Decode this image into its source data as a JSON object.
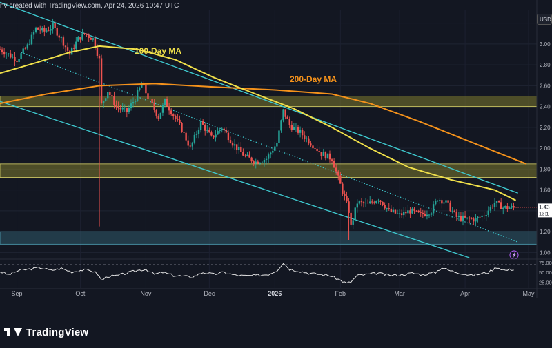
{
  "header": {
    "text": "nv created with TradingView.com, Apr 24, 2026 10:47 UTC"
  },
  "currency_button": "USD",
  "logo": {
    "text": "TradingView",
    "icon": "tradingview-logo-icon"
  },
  "event_icon": "lightning-icon",
  "colors": {
    "background": "#131722",
    "candle_up": "#26a69a",
    "candle_down": "#ef5350",
    "ma100": "#f0e04a",
    "ma200": "#f5921b",
    "channel": "#3ec9cf",
    "zone_fill": "#7d7a2e",
    "support_fill": "#2f5a6a",
    "rsi": "#e8e8e8"
  },
  "chart_data": [
    {
      "type": "candlestick",
      "y_ticks": [
        "3.20",
        "3.00",
        "2.80",
        "2.60",
        "2.40",
        "2.20",
        "2.00",
        "1.80",
        "1.60",
        "1.40",
        "1.20",
        "1.00"
      ],
      "ylim": [
        0.95,
        3.33
      ],
      "x_tick_labels": [
        "Sep",
        "Oct",
        "Nov",
        "Dec",
        "2026",
        "Feb",
        "Mar",
        "Apr",
        "May"
      ],
      "last_price_labels": [
        "1.43",
        "13:1"
      ],
      "annotations": [
        "100-Day MA",
        "200-Day MA"
      ],
      "zones": [
        {
          "name": "resistance-zone-upper",
          "from": 2.4,
          "to": 2.5
        },
        {
          "name": "resistance-zone-lower",
          "from": 1.72,
          "to": 1.85
        },
        {
          "name": "support-zone",
          "from": 1.08,
          "to": 1.2
        }
      ],
      "price_path": [
        {
          "date": "2025-08-24",
          "v": 2.95
        },
        {
          "date": "2025-09-01",
          "v": 2.85
        },
        {
          "date": "2025-09-06",
          "v": 2.98
        },
        {
          "date": "2025-09-10",
          "v": 3.15
        },
        {
          "date": "2025-09-14",
          "v": 3.12
        },
        {
          "date": "2025-09-18",
          "v": 3.17
        },
        {
          "date": "2025-09-22",
          "v": 3.05
        },
        {
          "date": "2025-09-26",
          "v": 2.9
        },
        {
          "date": "2025-09-30",
          "v": 3.05
        },
        {
          "date": "2025-10-03",
          "v": 3.1
        },
        {
          "date": "2025-10-07",
          "v": 3.05
        },
        {
          "date": "2025-10-10",
          "v": 2.85
        },
        {
          "date": "2025-10-11",
          "v": 2.42
        },
        {
          "date": "2025-10-14",
          "v": 2.55
        },
        {
          "date": "2025-10-18",
          "v": 2.4
        },
        {
          "date": "2025-10-23",
          "v": 2.35
        },
        {
          "date": "2025-10-27",
          "v": 2.48
        },
        {
          "date": "2025-10-30",
          "v": 2.62
        },
        {
          "date": "2025-11-03",
          "v": 2.45
        },
        {
          "date": "2025-11-07",
          "v": 2.3
        },
        {
          "date": "2025-11-10",
          "v": 2.45
        },
        {
          "date": "2025-11-14",
          "v": 2.32
        },
        {
          "date": "2025-11-18",
          "v": 2.18
        },
        {
          "date": "2025-11-22",
          "v": 2.0
        },
        {
          "date": "2025-11-27",
          "v": 2.25
        },
        {
          "date": "2025-12-02",
          "v": 2.1
        },
        {
          "date": "2025-12-07",
          "v": 2.2
        },
        {
          "date": "2025-12-12",
          "v": 2.05
        },
        {
          "date": "2025-12-18",
          "v": 1.92
        },
        {
          "date": "2025-12-23",
          "v": 1.87
        },
        {
          "date": "2025-12-28",
          "v": 1.9
        },
        {
          "date": "2026-01-02",
          "v": 2.05
        },
        {
          "date": "2026-01-05",
          "v": 2.36
        },
        {
          "date": "2026-01-08",
          "v": 2.22
        },
        {
          "date": "2026-01-13",
          "v": 2.15
        },
        {
          "date": "2026-01-18",
          "v": 2.05
        },
        {
          "date": "2026-01-23",
          "v": 1.95
        },
        {
          "date": "2026-01-28",
          "v": 1.9
        },
        {
          "date": "2026-02-01",
          "v": 1.65
        },
        {
          "date": "2026-02-05",
          "v": 1.4
        },
        {
          "date": "2026-02-06",
          "v": 1.25
        },
        {
          "date": "2026-02-09",
          "v": 1.48
        },
        {
          "date": "2026-02-14",
          "v": 1.46
        },
        {
          "date": "2026-02-19",
          "v": 1.52
        },
        {
          "date": "2026-02-24",
          "v": 1.4
        },
        {
          "date": "2026-03-01",
          "v": 1.36
        },
        {
          "date": "2026-03-06",
          "v": 1.4
        },
        {
          "date": "2026-03-11",
          "v": 1.36
        },
        {
          "date": "2026-03-16",
          "v": 1.4
        },
        {
          "date": "2026-03-19",
          "v": 1.52
        },
        {
          "date": "2026-03-23",
          "v": 1.48
        },
        {
          "date": "2026-03-28",
          "v": 1.34
        },
        {
          "date": "2026-04-02",
          "v": 1.32
        },
        {
          "date": "2026-04-06",
          "v": 1.32
        },
        {
          "date": "2026-04-10",
          "v": 1.36
        },
        {
          "date": "2026-04-15",
          "v": 1.48
        },
        {
          "date": "2026-04-19",
          "v": 1.43
        },
        {
          "date": "2026-04-24",
          "v": 1.43
        }
      ],
      "ma100": [
        {
          "date": "2025-08-24",
          "v": 2.72
        },
        {
          "date": "2025-09-10",
          "v": 2.82
        },
        {
          "date": "2025-09-26",
          "v": 2.92
        },
        {
          "date": "2025-10-10",
          "v": 2.98
        },
        {
          "date": "2025-10-28",
          "v": 2.95
        },
        {
          "date": "2025-11-15",
          "v": 2.85
        },
        {
          "date": "2025-12-03",
          "v": 2.68
        },
        {
          "date": "2025-12-23",
          "v": 2.52
        },
        {
          "date": "2026-01-10",
          "v": 2.38
        },
        {
          "date": "2026-01-28",
          "v": 2.2
        },
        {
          "date": "2026-02-15",
          "v": 2.0
        },
        {
          "date": "2026-03-05",
          "v": 1.82
        },
        {
          "date": "2026-03-25",
          "v": 1.7
        },
        {
          "date": "2026-04-15",
          "v": 1.6
        },
        {
          "date": "2026-04-25",
          "v": 1.5
        }
      ],
      "ma200": [
        {
          "date": "2025-08-24",
          "v": 2.43
        },
        {
          "date": "2025-09-15",
          "v": 2.52
        },
        {
          "date": "2025-10-10",
          "v": 2.6
        },
        {
          "date": "2025-11-05",
          "v": 2.62
        },
        {
          "date": "2025-12-01",
          "v": 2.59
        },
        {
          "date": "2026-01-01",
          "v": 2.56
        },
        {
          "date": "2026-01-28",
          "v": 2.52
        },
        {
          "date": "2026-02-15",
          "v": 2.43
        },
        {
          "date": "2026-03-10",
          "v": 2.26
        },
        {
          "date": "2026-04-05",
          "v": 2.05
        },
        {
          "date": "2026-04-30",
          "v": 1.85
        }
      ],
      "channel_upper": [
        {
          "date": "2025-08-24",
          "v": 3.4
        },
        {
          "date": "2026-04-26",
          "v": 1.57
        }
      ],
      "channel_lower": [
        {
          "date": "2025-08-24",
          "v": 2.45
        },
        {
          "date": "2026-04-03",
          "v": 0.95
        }
      ],
      "trendline_dotted": [
        {
          "date": "2025-09-03",
          "v": 2.92
        },
        {
          "date": "2026-04-26",
          "v": 1.1
        }
      ],
      "rsi": {
        "y_ticks": [
          "75.00",
          "50.00",
          "25.00"
        ],
        "ylim": [
          10,
          80
        ],
        "levels": [
          70,
          30
        ],
        "path": [
          {
            "date": "2025-08-24",
            "v": 52
          },
          {
            "date": "2025-08-28",
            "v": 44
          },
          {
            "date": "2025-09-02",
            "v": 55
          },
          {
            "date": "2025-09-07",
            "v": 58
          },
          {
            "date": "2025-09-12",
            "v": 62
          },
          {
            "date": "2025-09-17",
            "v": 55
          },
          {
            "date": "2025-09-22",
            "v": 60
          },
          {
            "date": "2025-09-27",
            "v": 51
          },
          {
            "date": "2025-10-02",
            "v": 56
          },
          {
            "date": "2025-10-06",
            "v": 55
          },
          {
            "date": "2025-10-09",
            "v": 47
          },
          {
            "date": "2025-10-11",
            "v": 30
          },
          {
            "date": "2025-10-14",
            "v": 40
          },
          {
            "date": "2025-10-18",
            "v": 41
          },
          {
            "date": "2025-10-23",
            "v": 48
          },
          {
            "date": "2025-10-28",
            "v": 55
          },
          {
            "date": "2025-11-01",
            "v": 58
          },
          {
            "date": "2025-11-05",
            "v": 45
          },
          {
            "date": "2025-11-09",
            "v": 50
          },
          {
            "date": "2025-11-14",
            "v": 42
          },
          {
            "date": "2025-11-19",
            "v": 40
          },
          {
            "date": "2025-11-23",
            "v": 38
          },
          {
            "date": "2025-11-28",
            "v": 50
          },
          {
            "date": "2025-12-03",
            "v": 45
          },
          {
            "date": "2025-12-08",
            "v": 50
          },
          {
            "date": "2025-12-13",
            "v": 43
          },
          {
            "date": "2025-12-18",
            "v": 41
          },
          {
            "date": "2025-12-23",
            "v": 42
          },
          {
            "date": "2025-12-29",
            "v": 45
          },
          {
            "date": "2026-01-02",
            "v": 55
          },
          {
            "date": "2026-01-05",
            "v": 74
          },
          {
            "date": "2026-01-08",
            "v": 58
          },
          {
            "date": "2026-01-12",
            "v": 54
          },
          {
            "date": "2026-01-17",
            "v": 48
          },
          {
            "date": "2026-01-22",
            "v": 45
          },
          {
            "date": "2026-01-27",
            "v": 42
          },
          {
            "date": "2026-02-01",
            "v": 30
          },
          {
            "date": "2026-02-04",
            "v": 22
          },
          {
            "date": "2026-02-06",
            "v": 26
          },
          {
            "date": "2026-02-09",
            "v": 42
          },
          {
            "date": "2026-02-14",
            "v": 45
          },
          {
            "date": "2026-02-19",
            "v": 48
          },
          {
            "date": "2026-02-24",
            "v": 42
          },
          {
            "date": "2026-03-02",
            "v": 44
          },
          {
            "date": "2026-03-07",
            "v": 48
          },
          {
            "date": "2026-03-12",
            "v": 44
          },
          {
            "date": "2026-03-18",
            "v": 50
          },
          {
            "date": "2026-03-21",
            "v": 62
          },
          {
            "date": "2026-03-25",
            "v": 54
          },
          {
            "date": "2026-03-30",
            "v": 48
          },
          {
            "date": "2026-04-04",
            "v": 42
          },
          {
            "date": "2026-04-08",
            "v": 46
          },
          {
            "date": "2026-04-12",
            "v": 50
          },
          {
            "date": "2026-04-16",
            "v": 63
          },
          {
            "date": "2026-04-20",
            "v": 55
          },
          {
            "date": "2026-04-24",
            "v": 58
          }
        ]
      }
    }
  ]
}
